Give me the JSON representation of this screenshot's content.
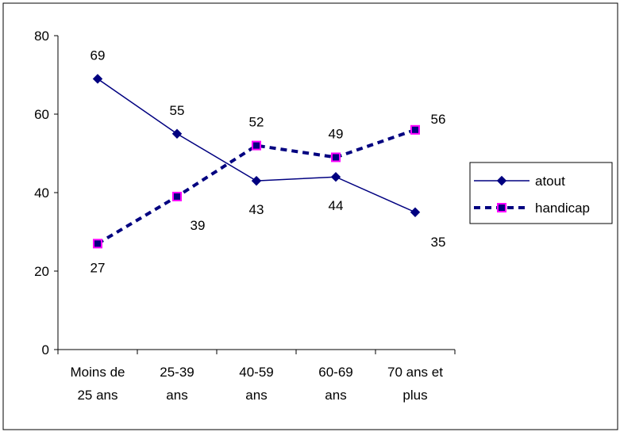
{
  "chart_data": {
    "type": "line",
    "title": "",
    "xlabel": "",
    "ylabel": "",
    "ylim": [
      0,
      80
    ],
    "yticks": [
      0,
      20,
      40,
      60,
      80
    ],
    "grid": false,
    "legend_position": "right",
    "categories": [
      [
        "Moins de",
        "25 ans"
      ],
      [
        "25-39",
        "ans"
      ],
      [
        "40-59",
        "ans"
      ],
      [
        "60-69",
        "ans"
      ],
      [
        "70 ans et",
        "plus"
      ]
    ],
    "series": [
      {
        "name": "atout",
        "values": [
          69,
          55,
          43,
          44,
          35
        ],
        "line_color": "#000080",
        "line_style": "solid",
        "marker": "diamond",
        "marker_fill": "#000080",
        "marker_edge": "#000080"
      },
      {
        "name": "handicap",
        "values": [
          27,
          39,
          52,
          49,
          56
        ],
        "line_color": "#000080",
        "line_style": "dashed",
        "marker": "square",
        "marker_fill": "#000080",
        "marker_edge": "#ff00ff"
      }
    ]
  }
}
